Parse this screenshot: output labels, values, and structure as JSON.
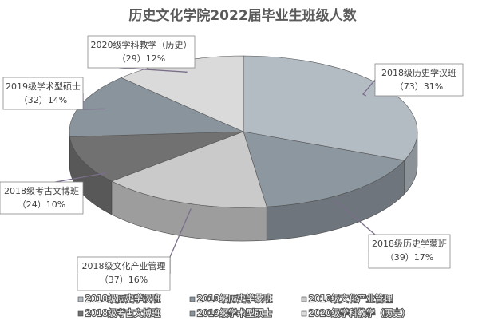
{
  "chart_data": {
    "type": "pie3d",
    "title": "历史文化学院2022届毕业生班级人数",
    "categories": [
      "2018级历史学汉班",
      "2018级历史学蒙班",
      "2018级文化产业管理",
      "2018级考古文博班",
      "2019级学术型硕士",
      "2020级学科教学（历史）"
    ],
    "values": [
      73,
      39,
      37,
      24,
      32,
      29
    ],
    "value_labels": [
      "（73）31%",
      "（39）17%",
      "（37）16%",
      "（24）10%",
      "（32）14%",
      "（29）12%"
    ],
    "colors": [
      "#b3bbc3",
      "#8d979f",
      "#cacaca",
      "#717171",
      "#8a949c",
      "#dadada"
    ]
  }
}
